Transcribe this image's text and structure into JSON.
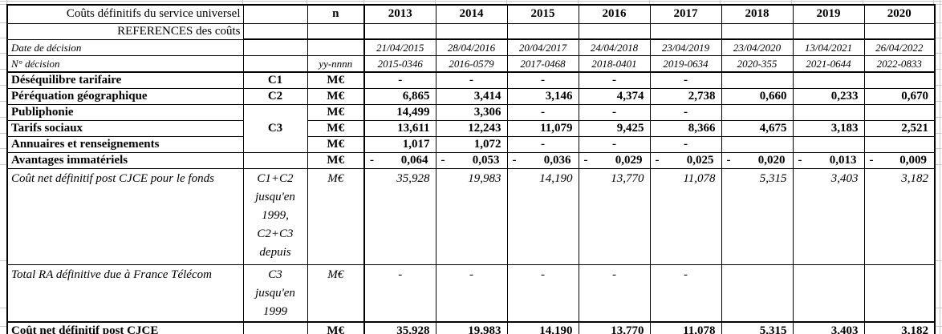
{
  "header": {
    "title_line1": "Coûts définitifs du service universel",
    "title_line2": "REFERENCES des coûts",
    "n_label": "n",
    "years": [
      "2013",
      "2014",
      "2015",
      "2016",
      "2017",
      "2018",
      "2019",
      "2020"
    ]
  },
  "meta": {
    "date_row": {
      "label": "Date de décision",
      "values": [
        "21/04/2015",
        "28/04/2016",
        "20/04/2017",
        "24/04/2018",
        "23/04/2019",
        "23/04/2020",
        "13/04/2021",
        "26/04/2022"
      ]
    },
    "decision_row": {
      "label": "N° décision",
      "unit": "yy-nnnn",
      "values": [
        "2015-0346",
        "2016-0579",
        "2017-0468",
        "2018-0401",
        "2019-0634",
        "2020-355",
        "2021-0644",
        "2022-0833"
      ]
    }
  },
  "unit_megaeuro": "M€",
  "codes": {
    "c1": "C1",
    "c2": "C2",
    "c3": "C3"
  },
  "rows": {
    "desequilibre": {
      "label": "Déséquilibre tarifaire",
      "values": [
        "-",
        "-",
        "-",
        "-",
        "-",
        "",
        "",
        ""
      ]
    },
    "perequation": {
      "label": "Péréquation géographique",
      "values": [
        "6,865",
        "3,414",
        "3,146",
        "4,374",
        "2,738",
        "0,660",
        "0,233",
        "0,670"
      ]
    },
    "publiphonie": {
      "label": "Publiphonie",
      "values": [
        "14,499",
        "3,306",
        "-",
        "-",
        "-",
        "",
        "",
        ""
      ]
    },
    "tarifs_sociaux": {
      "label": "Tarifs sociaux",
      "values": [
        "13,611",
        "12,243",
        "11,079",
        "9,425",
        "8,366",
        "4,675",
        "3,183",
        "2,521"
      ]
    },
    "annuaires": {
      "label": "Annuaires et renseignements",
      "values": [
        "1,017",
        "1,072",
        "-",
        "-",
        "-",
        "",
        "",
        ""
      ]
    },
    "avantages": {
      "label": "Avantages immatériels",
      "minus": "-",
      "values": [
        "0,064",
        "0,053",
        "0,036",
        "0,029",
        "0,025",
        "0,020",
        "0,013",
        "0,009"
      ]
    },
    "fonds": {
      "label": "Coût net définitif post CJCE pour le fonds",
      "code_lines": [
        "C1+C2",
        "jusqu'en",
        "1999,",
        "C2+C3",
        "depuis"
      ],
      "values": [
        "35,928",
        "19,983",
        "14,190",
        "13,770",
        "11,078",
        "5,315",
        "3,403",
        "3,182"
      ]
    },
    "total_ra": {
      "label": "Total RA définitive due à France Télécom",
      "code_lines": [
        "C3",
        "jusqu'en",
        "1999"
      ],
      "values": [
        "-",
        "-",
        "-",
        "-",
        "-",
        "",
        "",
        ""
      ]
    },
    "total": {
      "label": "Coût net définitif post CJCE",
      "values": [
        "35,928",
        "19,983",
        "14,190",
        "13,770",
        "11,078",
        "5,315",
        "3,403",
        "3,182"
      ]
    }
  }
}
